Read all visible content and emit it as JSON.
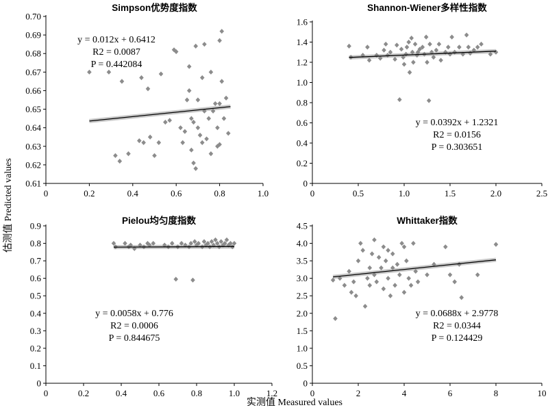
{
  "figure": {
    "ylabel": "估测值 Predicted values",
    "xlabel": "实测值 Measured values"
  },
  "chart_data": [
    {
      "type": "scatter",
      "title": "Simpson优势度指数",
      "xlim": [
        0,
        1.0
      ],
      "ylim": [
        0.61,
        0.7
      ],
      "xticks": [
        0,
        0.2,
        0.4,
        0.6,
        0.8,
        1.0
      ],
      "xtick_labels": [
        "0",
        "0.2",
        "0.4",
        "0.6",
        "0.8",
        "1.0"
      ],
      "yticks": [
        0.61,
        0.62,
        0.63,
        0.64,
        0.65,
        0.66,
        0.67,
        0.68,
        0.69,
        0.7
      ],
      "ytick_labels": [
        "0.61",
        "0.62",
        "0.63",
        "0.64",
        "0.65",
        "0.66",
        "0.67",
        "0.68",
        "0.69",
        "0.70"
      ],
      "annotation": {
        "eq": "y = 0.012x + 0.6412",
        "r2": "R2 = 0.0087",
        "p": "P = 0.442084"
      },
      "fit": {
        "slope": 0.012,
        "intercept": 0.6412
      },
      "fit_range": [
        0.2,
        0.85
      ],
      "points": [
        [
          0.2,
          0.67
        ],
        [
          0.29,
          0.67
        ],
        [
          0.32,
          0.625
        ],
        [
          0.34,
          0.622
        ],
        [
          0.35,
          0.665
        ],
        [
          0.38,
          0.626
        ],
        [
          0.43,
          0.633
        ],
        [
          0.44,
          0.667
        ],
        [
          0.45,
          0.632
        ],
        [
          0.47,
          0.661
        ],
        [
          0.48,
          0.635
        ],
        [
          0.5,
          0.625
        ],
        [
          0.52,
          0.632
        ],
        [
          0.53,
          0.669
        ],
        [
          0.55,
          0.643
        ],
        [
          0.57,
          0.644
        ],
        [
          0.59,
          0.682
        ],
        [
          0.6,
          0.681
        ],
        [
          0.62,
          0.64
        ],
        [
          0.63,
          0.632
        ],
        [
          0.64,
          0.638
        ],
        [
          0.65,
          0.655
        ],
        [
          0.66,
          0.673
        ],
        [
          0.66,
          0.66
        ],
        [
          0.67,
          0.645
        ],
        [
          0.67,
          0.628
        ],
        [
          0.68,
          0.643
        ],
        [
          0.68,
          0.621
        ],
        [
          0.69,
          0.684
        ],
        [
          0.69,
          0.618
        ],
        [
          0.7,
          0.655
        ],
        [
          0.7,
          0.64
        ],
        [
          0.71,
          0.636
        ],
        [
          0.72,
          0.667
        ],
        [
          0.72,
          0.632
        ],
        [
          0.73,
          0.685
        ],
        [
          0.73,
          0.649
        ],
        [
          0.74,
          0.634
        ],
        [
          0.75,
          0.645
        ],
        [
          0.76,
          0.67
        ],
        [
          0.76,
          0.626
        ],
        [
          0.77,
          0.649
        ],
        [
          0.78,
          0.653
        ],
        [
          0.79,
          0.64
        ],
        [
          0.79,
          0.63
        ],
        [
          0.8,
          0.687
        ],
        [
          0.8,
          0.653
        ],
        [
          0.8,
          0.631
        ],
        [
          0.81,
          0.692
        ],
        [
          0.81,
          0.665
        ],
        [
          0.82,
          0.645
        ],
        [
          0.83,
          0.656
        ],
        [
          0.84,
          0.637
        ]
      ]
    },
    {
      "type": "scatter",
      "title": "Shannon-Wiener多样性指数",
      "xlim": [
        0,
        2.5
      ],
      "ylim": [
        0,
        1.6
      ],
      "xticks": [
        0,
        0.5,
        1.0,
        1.5,
        2.0,
        2.5
      ],
      "xtick_labels": [
        "0",
        "0.5",
        "1.0",
        "1.5",
        "2.0",
        "2.5"
      ],
      "yticks": [
        0,
        0.2,
        0.4,
        0.6,
        0.8,
        1.0,
        1.2,
        1.4,
        1.6
      ],
      "ytick_labels": [
        "0",
        "0.2",
        "0.4",
        "0.6",
        "0.8",
        "1.0",
        "1.2",
        "1.4",
        "1.6"
      ],
      "annotation": {
        "eq": "y = 0.0392x + 1.2321",
        "r2": "R2 = 0.0156",
        "p": "P = 0.303651"
      },
      "fit": {
        "slope": 0.0392,
        "intercept": 1.2321
      },
      "fit_range": [
        0.4,
        2.0
      ],
      "points": [
        [
          0.4,
          1.36
        ],
        [
          0.42,
          1.25
        ],
        [
          0.55,
          1.27
        ],
        [
          0.6,
          1.35
        ],
        [
          0.62,
          1.22
        ],
        [
          0.7,
          1.27
        ],
        [
          0.74,
          1.24
        ],
        [
          0.78,
          1.32
        ],
        [
          0.8,
          1.38
        ],
        [
          0.82,
          1.27
        ],
        [
          0.85,
          1.3
        ],
        [
          0.9,
          1.23
        ],
        [
          0.92,
          1.37
        ],
        [
          0.95,
          0.83
        ],
        [
          0.97,
          1.33
        ],
        [
          0.99,
          1.25
        ],
        [
          1.0,
          1.18
        ],
        [
          1.02,
          1.28
        ],
        [
          1.03,
          1.35
        ],
        [
          1.05,
          1.4
        ],
        [
          1.06,
          1.1
        ],
        [
          1.08,
          1.44
        ],
        [
          1.09,
          1.3
        ],
        [
          1.1,
          1.2
        ],
        [
          1.12,
          1.38
        ],
        [
          1.14,
          1.27
        ],
        [
          1.15,
          1.3
        ],
        [
          1.17,
          1.33
        ],
        [
          1.2,
          1.35
        ],
        [
          1.22,
          1.28
        ],
        [
          1.24,
          1.45
        ],
        [
          1.25,
          1.2
        ],
        [
          1.27,
          0.82
        ],
        [
          1.28,
          1.38
        ],
        [
          1.3,
          1.3
        ],
        [
          1.32,
          1.25
        ],
        [
          1.35,
          1.32
        ],
        [
          1.38,
          1.38
        ],
        [
          1.4,
          1.22
        ],
        [
          1.45,
          1.3
        ],
        [
          1.48,
          1.35
        ],
        [
          1.5,
          1.28
        ],
        [
          1.52,
          1.45
        ],
        [
          1.55,
          1.3
        ],
        [
          1.6,
          1.35
        ],
        [
          1.64,
          1.28
        ],
        [
          1.68,
          1.47
        ],
        [
          1.7,
          1.35
        ],
        [
          1.72,
          1.29
        ],
        [
          1.76,
          1.32
        ],
        [
          1.8,
          1.35
        ],
        [
          1.84,
          1.38
        ],
        [
          1.94,
          1.28
        ],
        [
          2.0,
          1.3
        ]
      ]
    },
    {
      "type": "scatter",
      "title": "Pielou均匀度指数",
      "xlim": [
        0,
        1.2
      ],
      "ylim": [
        0,
        0.9
      ],
      "xticks": [
        0,
        0.2,
        0.4,
        0.6,
        0.8,
        1.0,
        1.2
      ],
      "xtick_labels": [
        "0",
        "0.2",
        "0.4",
        "0.6",
        "0.8",
        "1.0",
        "1.2"
      ],
      "yticks": [
        0,
        0.1,
        0.2,
        0.3,
        0.4,
        0.5,
        0.6,
        0.7,
        0.8,
        0.9
      ],
      "ytick_labels": [
        "0",
        "0.1",
        "0.2",
        "0.3",
        "0.4",
        "0.5",
        "0.6",
        "0.7",
        "0.8",
        "0.9"
      ],
      "annotation": {
        "eq": "y = 0.0058x + 0.776",
        "r2": "R2 = 0.0006",
        "p": "P = 0.844675"
      },
      "fit": {
        "slope": 0.0058,
        "intercept": 0.776
      },
      "fit_range": [
        0.36,
        1.0
      ],
      "points": [
        [
          0.36,
          0.8
        ],
        [
          0.37,
          0.78
        ],
        [
          0.42,
          0.8
        ],
        [
          0.44,
          0.78
        ],
        [
          0.45,
          0.79
        ],
        [
          0.47,
          0.77
        ],
        [
          0.5,
          0.79
        ],
        [
          0.52,
          0.78
        ],
        [
          0.54,
          0.8
        ],
        [
          0.55,
          0.79
        ],
        [
          0.57,
          0.8
        ],
        [
          0.63,
          0.79
        ],
        [
          0.65,
          0.78
        ],
        [
          0.67,
          0.8
        ],
        [
          0.69,
          0.595
        ],
        [
          0.7,
          0.78
        ],
        [
          0.72,
          0.8
        ],
        [
          0.74,
          0.79
        ],
        [
          0.76,
          0.78
        ],
        [
          0.77,
          0.8
        ],
        [
          0.78,
          0.59
        ],
        [
          0.79,
          0.81
        ],
        [
          0.8,
          0.79
        ],
        [
          0.81,
          0.8
        ],
        [
          0.83,
          0.78
        ],
        [
          0.84,
          0.81
        ],
        [
          0.85,
          0.79
        ],
        [
          0.86,
          0.8
        ],
        [
          0.87,
          0.78
        ],
        [
          0.88,
          0.81
        ],
        [
          0.89,
          0.79
        ],
        [
          0.9,
          0.82
        ],
        [
          0.91,
          0.8
        ],
        [
          0.92,
          0.78
        ],
        [
          0.93,
          0.81
        ],
        [
          0.94,
          0.79
        ],
        [
          0.95,
          0.8
        ],
        [
          0.96,
          0.82
        ],
        [
          0.97,
          0.79
        ],
        [
          0.98,
          0.8
        ],
        [
          0.99,
          0.78
        ],
        [
          1.0,
          0.8
        ]
      ]
    },
    {
      "type": "scatter",
      "title": "Whittaker指数",
      "xlim": [
        0,
        10
      ],
      "ylim": [
        0,
        4.5
      ],
      "xticks": [
        0,
        2,
        4,
        6,
        8,
        10
      ],
      "xtick_labels": [
        "0",
        "2",
        "4",
        "6",
        "8",
        "10"
      ],
      "yticks": [
        0,
        0.5,
        1.0,
        1.5,
        2.0,
        2.5,
        3.0,
        3.5,
        4.0,
        4.5
      ],
      "ytick_labels": [
        "0",
        "0.5",
        "1.0",
        "1.5",
        "2.0",
        "2.5",
        "3.0",
        "3.5",
        "4.0",
        "4.5"
      ],
      "annotation": {
        "eq": "y = 0.0688x + 2.9778",
        "r2": "R2 = 0.0344",
        "p": "P = 0.124429"
      },
      "fit": {
        "slope": 0.0688,
        "intercept": 2.9778
      },
      "fit_range": [
        0.9,
        8.0
      ],
      "points": [
        [
          0.9,
          2.95
        ],
        [
          1.0,
          1.85
        ],
        [
          1.2,
          3.0
        ],
        [
          1.4,
          2.8
        ],
        [
          1.6,
          3.2
        ],
        [
          1.7,
          2.6
        ],
        [
          1.8,
          2.9
        ],
        [
          1.9,
          2.5
        ],
        [
          2.0,
          3.5
        ],
        [
          2.1,
          4.0
        ],
        [
          2.2,
          3.8
        ],
        [
          2.3,
          2.2
        ],
        [
          2.4,
          3.0
        ],
        [
          2.5,
          3.3
        ],
        [
          2.5,
          2.8
        ],
        [
          2.6,
          3.7
        ],
        [
          2.7,
          3.1
        ],
        [
          2.7,
          4.1
        ],
        [
          2.8,
          2.9
        ],
        [
          2.9,
          3.6
        ],
        [
          3.0,
          3.3
        ],
        [
          3.1,
          3.9
        ],
        [
          3.1,
          2.7
        ],
        [
          3.2,
          3.5
        ],
        [
          3.3,
          3.8
        ],
        [
          3.3,
          3.0
        ],
        [
          3.4,
          2.5
        ],
        [
          3.5,
          3.3
        ],
        [
          3.5,
          3.7
        ],
        [
          3.6,
          2.8
        ],
        [
          3.7,
          3.4
        ],
        [
          3.8,
          3.1
        ],
        [
          3.9,
          4.0
        ],
        [
          4.0,
          3.9
        ],
        [
          4.0,
          2.6
        ],
        [
          4.1,
          3.5
        ],
        [
          4.2,
          3.0
        ],
        [
          4.3,
          2.8
        ],
        [
          4.4,
          4.0
        ],
        [
          4.5,
          3.2
        ],
        [
          4.6,
          2.9
        ],
        [
          5.0,
          3.1
        ],
        [
          5.3,
          3.4
        ],
        [
          5.8,
          3.9
        ],
        [
          6.0,
          3.1
        ],
        [
          6.2,
          2.9
        ],
        [
          6.4,
          3.4
        ],
        [
          6.5,
          2.45
        ],
        [
          7.2,
          3.1
        ],
        [
          8.0,
          3.97
        ]
      ]
    }
  ]
}
